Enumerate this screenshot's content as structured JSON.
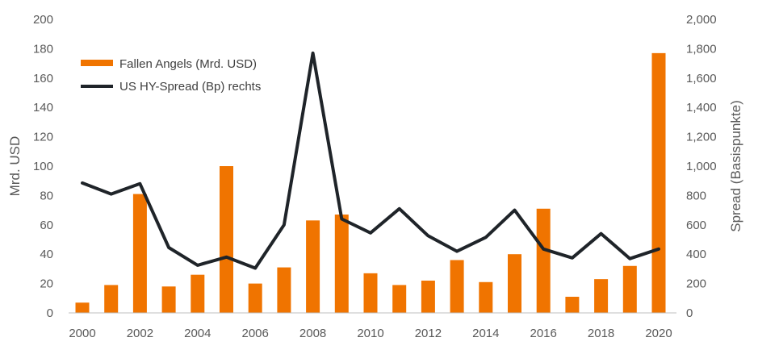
{
  "chart_data": {
    "type": "bar+line",
    "title": "",
    "categories": [
      "2000",
      "2001",
      "2002",
      "2003",
      "2004",
      "2005",
      "2006",
      "2007",
      "2008",
      "2009",
      "2010",
      "2011",
      "2012",
      "2013",
      "2014",
      "2015",
      "2016",
      "2017",
      "2018",
      "2019",
      "2020"
    ],
    "x_tick_labels": [
      "2000",
      "2002",
      "2004",
      "2006",
      "2008",
      "2010",
      "2012",
      "2014",
      "2016",
      "2018",
      "2020"
    ],
    "series": [
      {
        "name": "Fallen Angels (Mrd. USD)",
        "type": "bar",
        "axis": "left",
        "color": "#f07400",
        "values": [
          7,
          19,
          81,
          18,
          26,
          100,
          20,
          31,
          63,
          67,
          27,
          19,
          22,
          36,
          21,
          40,
          71,
          11,
          23,
          32,
          177
        ]
      },
      {
        "name": "US HY-Spread (Bp) rechts",
        "type": "line",
        "axis": "right",
        "color": "#1f2429",
        "values": [
          885,
          810,
          880,
          445,
          325,
          380,
          305,
          600,
          1770,
          640,
          545,
          710,
          525,
          420,
          515,
          700,
          435,
          375,
          540,
          370,
          435
        ]
      }
    ],
    "y_left": {
      "label": "Mrd. USD",
      "range": [
        0,
        200
      ],
      "ticks": [
        0,
        20,
        40,
        60,
        80,
        100,
        120,
        140,
        160,
        180,
        200
      ],
      "tick_labels": [
        "0",
        "20",
        "40",
        "60",
        "80",
        "100",
        "120",
        "140",
        "160",
        "180",
        "200"
      ]
    },
    "y_right": {
      "label": "Spread (Basispunkte)",
      "range": [
        0,
        2000
      ],
      "ticks": [
        0,
        200,
        400,
        600,
        800,
        1000,
        1200,
        1400,
        1600,
        1800,
        2000
      ],
      "tick_labels": [
        "0",
        "200",
        "400",
        "600",
        "800",
        "1,000",
        "1,200",
        "1,400",
        "1,600",
        "1,800",
        "2,000"
      ]
    },
    "grid": false,
    "legend_position": "top-left"
  }
}
